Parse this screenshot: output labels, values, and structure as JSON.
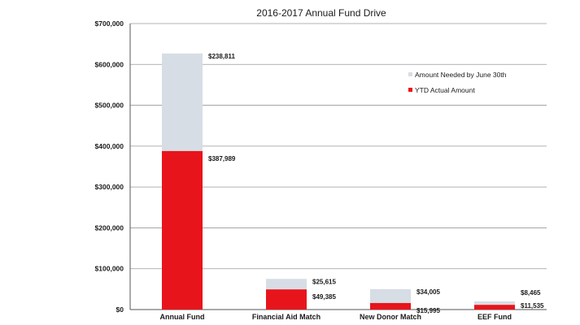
{
  "chart_data": {
    "type": "bar",
    "stacked": true,
    "title": "2016-2017 Annual Fund Drive",
    "xlabel": "",
    "ylabel": "",
    "categories": [
      "Annual Fund",
      "Financial Aid Match",
      "New Donor Match",
      "EEF Fund"
    ],
    "ylim": [
      0,
      700000
    ],
    "yticks": [
      0,
      100000,
      200000,
      300000,
      400000,
      500000,
      600000,
      700000
    ],
    "ytick_labels": [
      "$0",
      "$100,000",
      "$200,000",
      "$300,000",
      "$400,000",
      "$500,000",
      "$600,000",
      "$700,000"
    ],
    "grid": true,
    "legend_position": "top-right",
    "series": [
      {
        "name": "YTD Actual Amount",
        "color": "#e8141b",
        "values": [
          387989,
          49385,
          15995,
          11535
        ],
        "labels": [
          "$387,989",
          "$49,385",
          "$15,995",
          "$11,535"
        ]
      },
      {
        "name": "Amount Needed by June 30th",
        "color": "#d7dde4",
        "values": [
          238811,
          25615,
          34005,
          8465
        ],
        "labels": [
          "$238,811",
          "$25,615",
          "$34,005",
          "$8,465"
        ]
      }
    ],
    "legend_order": [
      "Amount Needed by June 30th",
      "YTD Actual Amount"
    ]
  }
}
